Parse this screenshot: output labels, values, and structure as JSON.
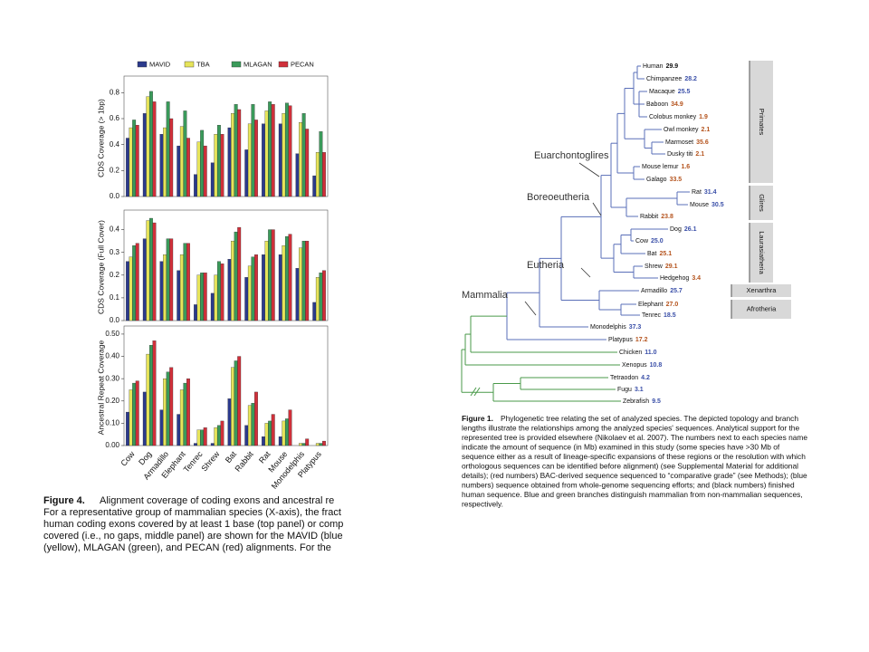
{
  "chart_data": [
    {
      "type": "bar",
      "y_label": "CDS Coverage (> 1bp)",
      "ylim": [
        0,
        0.9
      ],
      "yticks": [
        {
          "value": 0,
          "label": "0.0"
        },
        0.2,
        0.4,
        0.6,
        0.8
      ],
      "series": [
        {
          "name": "MAVID",
          "color": "#2b3a8c",
          "values": [
            0.45,
            0.64,
            0.48,
            0.39,
            0.17,
            0.26,
            0.53,
            0.36,
            0.56,
            0.56,
            0.33,
            0.16
          ]
        },
        {
          "name": "TBA",
          "color": "#e6e45a",
          "values": [
            0.53,
            0.77,
            0.53,
            0.54,
            0.42,
            0.48,
            0.64,
            0.56,
            0.66,
            0.64,
            0.57,
            0.34
          ]
        },
        {
          "name": "MLAGAN",
          "color": "#3a9a5a",
          "values": [
            0.59,
            0.81,
            0.73,
            0.66,
            0.51,
            0.55,
            0.71,
            0.71,
            0.73,
            0.72,
            0.64,
            0.5
          ]
        },
        {
          "name": "PECAN",
          "color": "#d0303a",
          "values": [
            0.55,
            0.73,
            0.6,
            0.45,
            0.39,
            0.48,
            0.67,
            0.59,
            0.71,
            0.7,
            0.52,
            0.34
          ]
        }
      ]
    },
    {
      "type": "bar",
      "y_label": "CDS Coverage (Full Cover)",
      "ylim": [
        0,
        0.47
      ],
      "yticks": [
        {
          "value": 0,
          "label": "0.0"
        },
        0.1,
        0.2,
        0.3,
        0.4
      ],
      "series": [
        {
          "values": [
            0.26,
            0.36,
            0.26,
            0.22,
            0.07,
            0.12,
            0.27,
            0.19,
            0.29,
            0.29,
            0.23,
            0.08
          ]
        },
        {
          "values": [
            0.28,
            0.44,
            0.29,
            0.29,
            0.2,
            0.2,
            0.35,
            0.24,
            0.35,
            0.33,
            0.32,
            0.19
          ]
        },
        {
          "values": [
            0.33,
            0.45,
            0.36,
            0.34,
            0.21,
            0.26,
            0.39,
            0.28,
            0.4,
            0.37,
            0.35,
            0.21
          ]
        },
        {
          "values": [
            0.34,
            0.43,
            0.36,
            0.34,
            0.21,
            0.25,
            0.41,
            0.29,
            0.4,
            0.38,
            0.35,
            0.22
          ]
        }
      ]
    },
    {
      "type": "bar",
      "y_label": "Ancestral Repeat Coverage",
      "ylim": [
        0,
        0.52
      ],
      "yticks": [
        {
          "value": 0,
          "label": "0.00"
        },
        {
          "value": 0.1,
          "label": "0.10"
        },
        {
          "value": 0.2,
          "label": "0.20"
        },
        {
          "value": 0.3,
          "label": "0.30"
        },
        {
          "value": 0.4,
          "label": "0.40"
        },
        {
          "value": 0.5,
          "label": "0.50"
        }
      ],
      "categories": [
        "Cow",
        "Dog",
        "Armadillo",
        "Elephant",
        "Tenrec",
        "Shrew",
        "Bat",
        "Rabbit",
        "Rat",
        "Mouse",
        "Monodelphis",
        "Platypus"
      ],
      "series": [
        {
          "values": [
            0.15,
            0.24,
            0.16,
            0.14,
            0.01,
            0.01,
            0.21,
            0.09,
            0.04,
            0.04,
            0.0,
            0.0
          ]
        },
        {
          "values": [
            0.25,
            0.41,
            0.3,
            0.25,
            0.07,
            0.08,
            0.35,
            0.18,
            0.1,
            0.11,
            0.01,
            0.01
          ]
        },
        {
          "values": [
            0.28,
            0.45,
            0.33,
            0.28,
            0.07,
            0.09,
            0.38,
            0.19,
            0.11,
            0.12,
            0.01,
            0.01
          ]
        },
        {
          "values": [
            0.29,
            0.47,
            0.35,
            0.3,
            0.08,
            0.11,
            0.4,
            0.24,
            0.14,
            0.16,
            0.03,
            0.02
          ]
        }
      ]
    }
  ],
  "figure4_caption": {
    "label": "Figure 4.",
    "lines": [
      "Alignment coverage of coding exons and ancestral re",
      "For a representative group of mammalian species (X-axis), the fract",
      "human coding exons covered by at least 1 base (top panel) or comp",
      "covered (i.e., no gaps, middle panel) are shown for the MAVID (blue",
      "(yellow), MLAGAN (green), and PECAN (red) alignments. For the"
    ]
  },
  "tree": {
    "species": [
      {
        "name": "Human",
        "size": "29.9",
        "color": "#111111"
      },
      {
        "name": "Chimpanzee",
        "size": "28.2",
        "color": "#3a4fa8"
      },
      {
        "name": "Macaque",
        "size": "25.5",
        "color": "#3a4fa8"
      },
      {
        "name": "Baboon",
        "size": "34.9",
        "color": "#b5541e"
      },
      {
        "name": "Colobus monkey",
        "size": "1.9",
        "color": "#b5541e"
      },
      {
        "name": "Owl monkey",
        "size": "2.1",
        "color": "#b5541e"
      },
      {
        "name": "Marmoset",
        "size": "35.6",
        "color": "#b5541e"
      },
      {
        "name": "Dusky titi",
        "size": "2.1",
        "color": "#b5541e"
      },
      {
        "name": "Mouse lemur",
        "size": "1.6",
        "color": "#b5541e"
      },
      {
        "name": "Galago",
        "size": "33.5",
        "color": "#b5541e"
      },
      {
        "name": "Rat",
        "size": "31.4",
        "color": "#3a4fa8"
      },
      {
        "name": "Mouse",
        "size": "30.5",
        "color": "#3a4fa8"
      },
      {
        "name": "Rabbit",
        "size": "23.8",
        "color": "#b5541e"
      },
      {
        "name": "Dog",
        "size": "26.1",
        "color": "#3a4fa8"
      },
      {
        "name": "Cow",
        "size": "25.0",
        "color": "#3a4fa8"
      },
      {
        "name": "Bat",
        "size": "25.1",
        "color": "#b5541e"
      },
      {
        "name": "Shrew",
        "size": "29.1",
        "color": "#b5541e"
      },
      {
        "name": "Hedgehog",
        "size": "3.4",
        "color": "#b5541e"
      },
      {
        "name": "Armadillo",
        "size": "25.7",
        "color": "#3a4fa8"
      },
      {
        "name": "Elephant",
        "size": "27.0",
        "color": "#b5541e"
      },
      {
        "name": "Tenrec",
        "size": "18.5",
        "color": "#3a4fa8"
      },
      {
        "name": "Monodelphis",
        "size": "37.3",
        "color": "#3a4fa8"
      },
      {
        "name": "Platypus",
        "size": "17.2",
        "color": "#b5541e"
      },
      {
        "name": "Chicken",
        "size": "11.0",
        "color": "#3a4fa8"
      },
      {
        "name": "Xenopus",
        "size": "10.8",
        "color": "#3a4fa8"
      },
      {
        "name": "Tetraodon",
        "size": "4.2",
        "color": "#3a4fa8"
      },
      {
        "name": "Fugu",
        "size": "3.1",
        "color": "#3a4fa8"
      },
      {
        "name": "Zebrafish",
        "size": "9.5",
        "color": "#3a4fa8"
      }
    ],
    "clades": [
      "Euarchontoglires",
      "Boreoeutheria",
      "Eutheria",
      "Mammalia"
    ],
    "groups": [
      "Primates",
      "Glires",
      "Laurasiatheria",
      "Xenarthra",
      "Afrotheria"
    ]
  },
  "figure1_caption": {
    "label": "Figure 1.",
    "lines": [
      "Phylogenetic tree relating the set of analyzed species. The depicted topology and branch",
      "lengths illustrate the relationships among the analyzed species' sequences. Analytical support for the",
      "represented tree is provided elsewhere (Nikolaev et al. 2007). The numbers next to each species name",
      "indicate the amount of sequence (in Mb) examined in this study (some species have >30 Mb of",
      "sequence either as a result of lineage-specific expansions of these regions or the resolution with which",
      "orthologous sequences can be identified before alignment) (see Supplemental Material for additional",
      "details); (red numbers) BAC-derived sequence sequenced to “comparative grade” (see Methods); (blue",
      "numbers) sequence obtained from whole-genome sequencing efforts; and (black numbers) finished",
      "human sequence. Blue and green branches distinguish mammalian from non-mammalian sequences,",
      "respectively."
    ]
  }
}
